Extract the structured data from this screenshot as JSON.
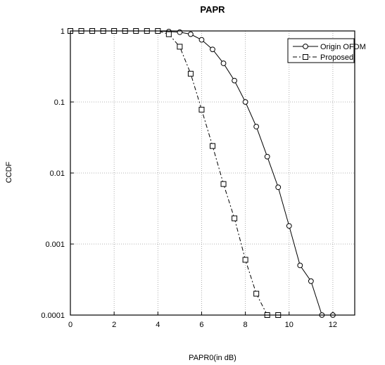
{
  "chart_data": {
    "type": "line",
    "title": "PAPR",
    "xlabel": "PAPR0(in dB)",
    "ylabel": "CCDF",
    "xlim": [
      0,
      13
    ],
    "ylim": [
      0.0001,
      1
    ],
    "yscale": "log",
    "grid": true,
    "legend_position": "top-right",
    "x_ticks": [
      0,
      2,
      4,
      6,
      8,
      10,
      12
    ],
    "x_tick_labels": [
      "0",
      "2",
      "4",
      "6",
      "8",
      "10",
      "12"
    ],
    "y_ticks": [
      1,
      0.1,
      0.01,
      0.001,
      0.0001
    ],
    "y_tick_labels": [
      "1",
      "0.1",
      "0.01",
      "0.001",
      "0.0001"
    ],
    "series": [
      {
        "name": "Origin OFDM",
        "marker": "circle",
        "line_style": "solid",
        "color": "#000000",
        "points": [
          {
            "x": 0,
            "y": 1
          },
          {
            "x": 0.5,
            "y": 1
          },
          {
            "x": 1,
            "y": 1
          },
          {
            "x": 1.5,
            "y": 1
          },
          {
            "x": 2,
            "y": 1
          },
          {
            "x": 2.5,
            "y": 1
          },
          {
            "x": 3,
            "y": 1
          },
          {
            "x": 3.5,
            "y": 1
          },
          {
            "x": 4,
            "y": 1
          },
          {
            "x": 4.5,
            "y": 0.98
          },
          {
            "x": 5,
            "y": 0.96
          },
          {
            "x": 5.5,
            "y": 0.9
          },
          {
            "x": 6,
            "y": 0.75
          },
          {
            "x": 6.5,
            "y": 0.55
          },
          {
            "x": 7,
            "y": 0.35
          },
          {
            "x": 7.5,
            "y": 0.2
          },
          {
            "x": 8,
            "y": 0.1
          },
          {
            "x": 8.5,
            "y": 0.045
          },
          {
            "x": 9,
            "y": 0.017
          },
          {
            "x": 9.5,
            "y": 0.0063
          },
          {
            "x": 10,
            "y": 0.0018
          },
          {
            "x": 10.5,
            "y": 0.0005
          },
          {
            "x": 11,
            "y": 0.0003
          },
          {
            "x": 11.5,
            "y": 0.0001
          },
          {
            "x": 12,
            "y": 0.0001
          }
        ]
      },
      {
        "name": "Proposed",
        "marker": "square",
        "line_style": "dashdot",
        "color": "#000000",
        "points": [
          {
            "x": 0,
            "y": 1
          },
          {
            "x": 0.5,
            "y": 1
          },
          {
            "x": 1,
            "y": 1
          },
          {
            "x": 1.5,
            "y": 1
          },
          {
            "x": 2,
            "y": 1
          },
          {
            "x": 2.5,
            "y": 1
          },
          {
            "x": 3,
            "y": 1
          },
          {
            "x": 3.5,
            "y": 1
          },
          {
            "x": 4,
            "y": 1
          },
          {
            "x": 4.5,
            "y": 0.9
          },
          {
            "x": 5,
            "y": 0.6
          },
          {
            "x": 5.5,
            "y": 0.25
          },
          {
            "x": 6,
            "y": 0.078
          },
          {
            "x": 6.5,
            "y": 0.024
          },
          {
            "x": 7,
            "y": 0.007
          },
          {
            "x": 7.5,
            "y": 0.0023
          },
          {
            "x": 8,
            "y": 0.0006
          },
          {
            "x": 8.5,
            "y": 0.0002
          },
          {
            "x": 9,
            "y": 0.0001
          },
          {
            "x": 9.5,
            "y": 0.0001
          }
        ]
      }
    ]
  }
}
